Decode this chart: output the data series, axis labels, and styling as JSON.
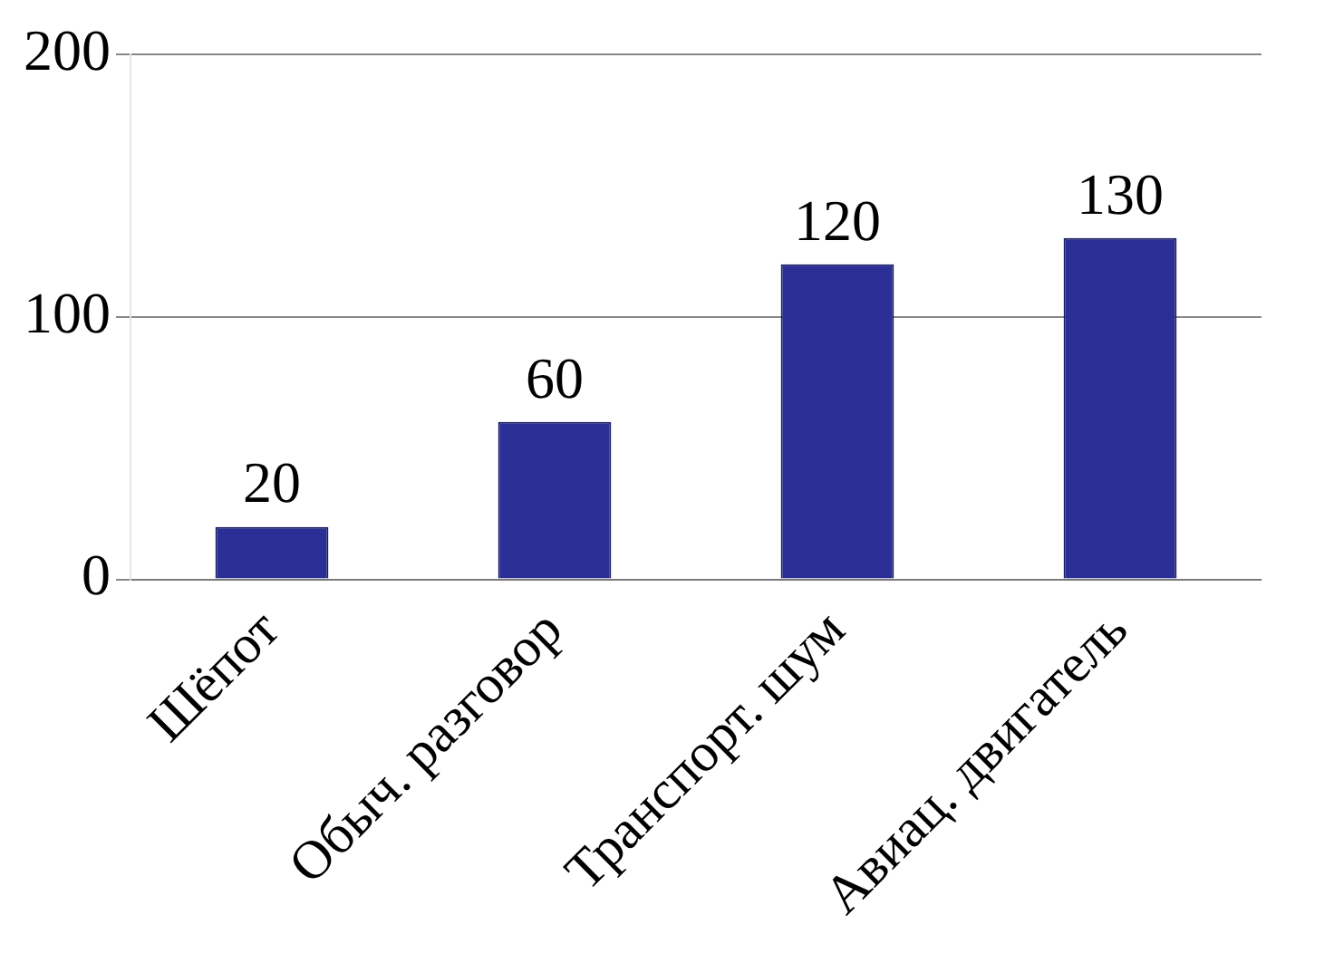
{
  "chart_data": {
    "type": "bar",
    "categories": [
      "Шёпот",
      "Обыч. разговор",
      "Транспорт. шум",
      "Авиац. двигатель"
    ],
    "values": [
      20,
      60,
      120,
      130
    ],
    "color": "#2b2f95",
    "ylim": [
      0,
      200
    ],
    "yticks": [
      0,
      100,
      200
    ],
    "grid": "y",
    "legend": false,
    "data_labels": true
  }
}
